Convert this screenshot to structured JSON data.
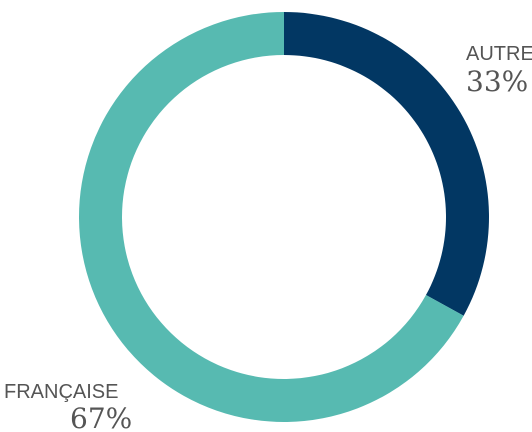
{
  "chart_data": {
    "type": "pie",
    "style": "donut",
    "slices": [
      {
        "label": "AUTRE",
        "value": 33,
        "value_label": "33%",
        "color": "#023763"
      },
      {
        "label": "FRANÇAISE",
        "value": 67,
        "value_label": "67%",
        "color": "#57bab1"
      }
    ],
    "start": "top",
    "direction": "clockwise",
    "background": "#ffffff"
  }
}
